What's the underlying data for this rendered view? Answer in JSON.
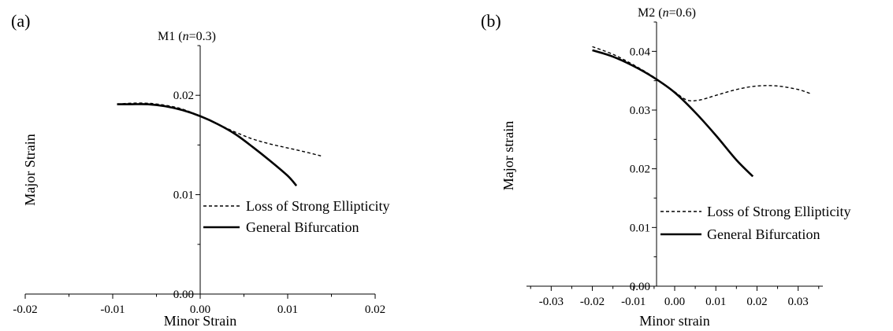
{
  "chart_data": [
    {
      "type": "line",
      "panel_label": "(a)",
      "title_prefix": "M1 (",
      "title_var": "n",
      "title_suffix": "=0.3)",
      "xlabel": "Minor Strain",
      "ylabel": "Major Strain",
      "xlim": [
        -0.02,
        0.02
      ],
      "ylim": [
        0.0,
        0.025
      ],
      "xticks": [
        -0.02,
        -0.01,
        0.0,
        0.01,
        0.02
      ],
      "xtick_labels": [
        "-0.02",
        "-0.01",
        "0.00",
        "0.01",
        "0.02"
      ],
      "yticks": [
        0.0,
        0.01,
        0.02
      ],
      "ytick_labels": [
        "0.00",
        "0.01",
        "0.02"
      ],
      "legend_position": "center-right",
      "series": [
        {
          "name": "Loss of Strong Ellipticity",
          "style": "dashed",
          "x": [
            -0.0095,
            -0.008,
            -0.006,
            -0.004,
            -0.002,
            0.0,
            0.002,
            0.004,
            0.006,
            0.008,
            0.01,
            0.012,
            0.0138
          ],
          "y": [
            0.0191,
            0.0192,
            0.0192,
            0.019,
            0.0186,
            0.0179,
            0.0171,
            0.0163,
            0.0156,
            0.0151,
            0.0147,
            0.0143,
            0.0139
          ]
        },
        {
          "name": "General Bifurcation",
          "style": "solid",
          "x": [
            -0.0095,
            -0.008,
            -0.006,
            -0.004,
            -0.002,
            0.0,
            0.002,
            0.004,
            0.006,
            0.008,
            0.01,
            0.011
          ],
          "y": [
            0.0191,
            0.0191,
            0.0191,
            0.0189,
            0.0185,
            0.0179,
            0.0171,
            0.0161,
            0.0148,
            0.0134,
            0.0119,
            0.0109
          ]
        }
      ]
    },
    {
      "type": "line",
      "panel_label": "(b)",
      "title_prefix": "M2 (",
      "title_var": "n",
      "title_suffix": "=0.6)",
      "xlabel": "Minor strain",
      "ylabel": "Major strain",
      "xlim": [
        -0.036,
        0.036
      ],
      "ylim": [
        0.0,
        0.045
      ],
      "xticks": [
        -0.03,
        -0.02,
        -0.01,
        0.0,
        0.01,
        0.02,
        0.03
      ],
      "xtick_labels": [
        "-0.03",
        "-0.02",
        "-0.01",
        "0.00",
        "0.01",
        "0.02",
        "0.03"
      ],
      "yticks": [
        0.0,
        0.01,
        0.02,
        0.03,
        0.04
      ],
      "ytick_labels": [
        "0.00",
        "0.01",
        "0.02",
        "0.03",
        "0.04"
      ],
      "legend_position": "lower-right",
      "series": [
        {
          "name": "Loss of Strong Ellipticity",
          "style": "dashed",
          "x": [
            -0.02,
            -0.015,
            -0.01,
            -0.005,
            0.0,
            0.003,
            0.006,
            0.01,
            0.015,
            0.02,
            0.025,
            0.03,
            0.033
          ],
          "y": [
            0.0408,
            0.0395,
            0.0377,
            0.0356,
            0.0331,
            0.0317,
            0.0317,
            0.0325,
            0.0335,
            0.0341,
            0.0341,
            0.0335,
            0.0328
          ]
        },
        {
          "name": "General Bifurcation",
          "style": "solid",
          "x": [
            -0.02,
            -0.015,
            -0.01,
            -0.005,
            0.0,
            0.005,
            0.01,
            0.015,
            0.019
          ],
          "y": [
            0.0402,
            0.0391,
            0.0375,
            0.0355,
            0.033,
            0.0296,
            0.0257,
            0.0215,
            0.0187
          ]
        }
      ]
    }
  ]
}
